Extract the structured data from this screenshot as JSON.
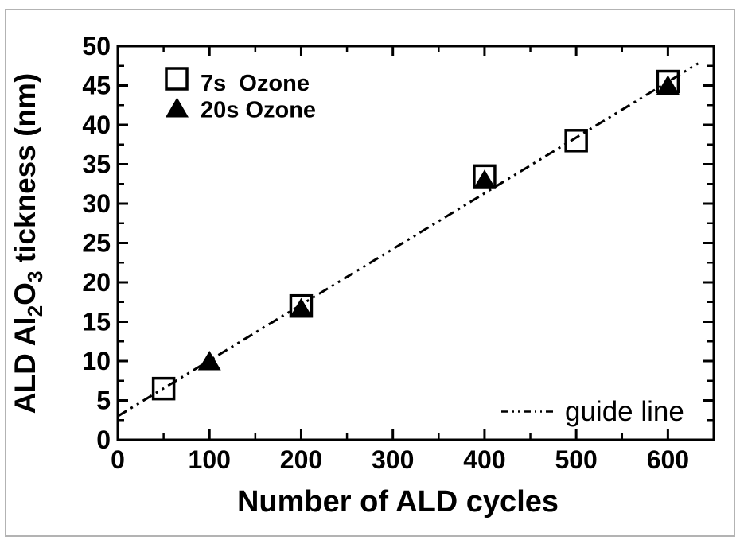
{
  "figure": {
    "background": "#ffffff",
    "border_color": "#b3b3b3",
    "ink_color": "#000000"
  },
  "chart_data": {
    "type": "scatter",
    "title": "",
    "xlabel": "Number of ALD cycles",
    "ylabel": "ALD Al2O3 tickness (nm)",
    "ylabel_parts": [
      {
        "text": "ALD Al"
      },
      {
        "text": "2",
        "sub": true
      },
      {
        "text": "O"
      },
      {
        "text": "3",
        "sub": true
      },
      {
        "text": " tickness (nm)"
      }
    ],
    "xlim": [
      0,
      650
    ],
    "ylim": [
      0,
      50
    ],
    "x_major_ticks": [
      0,
      100,
      200,
      300,
      400,
      500,
      600
    ],
    "x_tick_labels": [
      "0",
      "100",
      "200",
      "300",
      "400",
      "500",
      "600"
    ],
    "x_minor_step": 50,
    "y_major_ticks": [
      0,
      5,
      10,
      15,
      20,
      25,
      30,
      35,
      40,
      45,
      50
    ],
    "y_tick_labels": [
      "0",
      "5",
      "10",
      "15",
      "20",
      "25",
      "30",
      "35",
      "40",
      "45",
      "50"
    ],
    "y_minor_step": 2.5,
    "grid": false,
    "legend_position": "upper-left-inside",
    "series": [
      {
        "name": "7s  Ozone",
        "marker": "open-square",
        "points": [
          [
            50,
            6.5
          ],
          [
            200,
            17
          ],
          [
            400,
            33.5
          ],
          [
            500,
            38
          ],
          [
            600,
            45.5
          ]
        ]
      },
      {
        "name": "20s Ozone",
        "marker": "filled-triangle",
        "points": [
          [
            100,
            10
          ],
          [
            200,
            16.7
          ],
          [
            400,
            33
          ],
          [
            600,
            45
          ]
        ]
      }
    ],
    "guide_line": {
      "label": "guide line",
      "style": "dash-dot-dot",
      "from": [
        0,
        3
      ],
      "to": [
        633,
        47.8
      ]
    }
  }
}
